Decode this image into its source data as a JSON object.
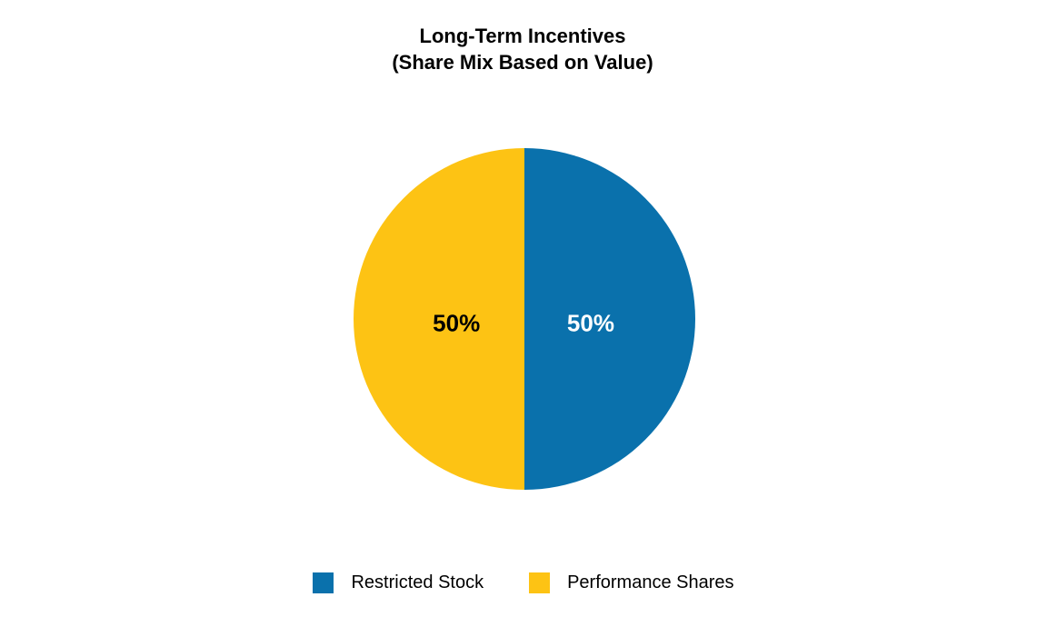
{
  "title": {
    "line1": "Long-Term Incentives",
    "line2": "(Share Mix Based on Value)"
  },
  "chart_data": {
    "type": "pie",
    "title": "Long-Term Incentives (Share Mix Based on Value)",
    "start_angle_deg": 0,
    "direction": "clockwise",
    "legend_position": "bottom",
    "background_color": "#FFFFFF",
    "slices": [
      {
        "label": "Restricted Stock",
        "value": 50,
        "display": "50%",
        "color": "#0A71AC",
        "label_color": "#FFFFFF",
        "position": "right-half"
      },
      {
        "label": "Performance Shares",
        "value": 50,
        "display": "50%",
        "color": "#FDC314",
        "label_color": "#000000",
        "position": "left-half"
      }
    ]
  },
  "legend": {
    "items": [
      {
        "label": "Restricted Stock",
        "color": "#0A71AC"
      },
      {
        "label": "Performance Shares",
        "color": "#FDC314"
      }
    ]
  },
  "colors": {
    "background": "#FFFFFF",
    "title_text": "#000000",
    "legend_text": "#000000"
  }
}
